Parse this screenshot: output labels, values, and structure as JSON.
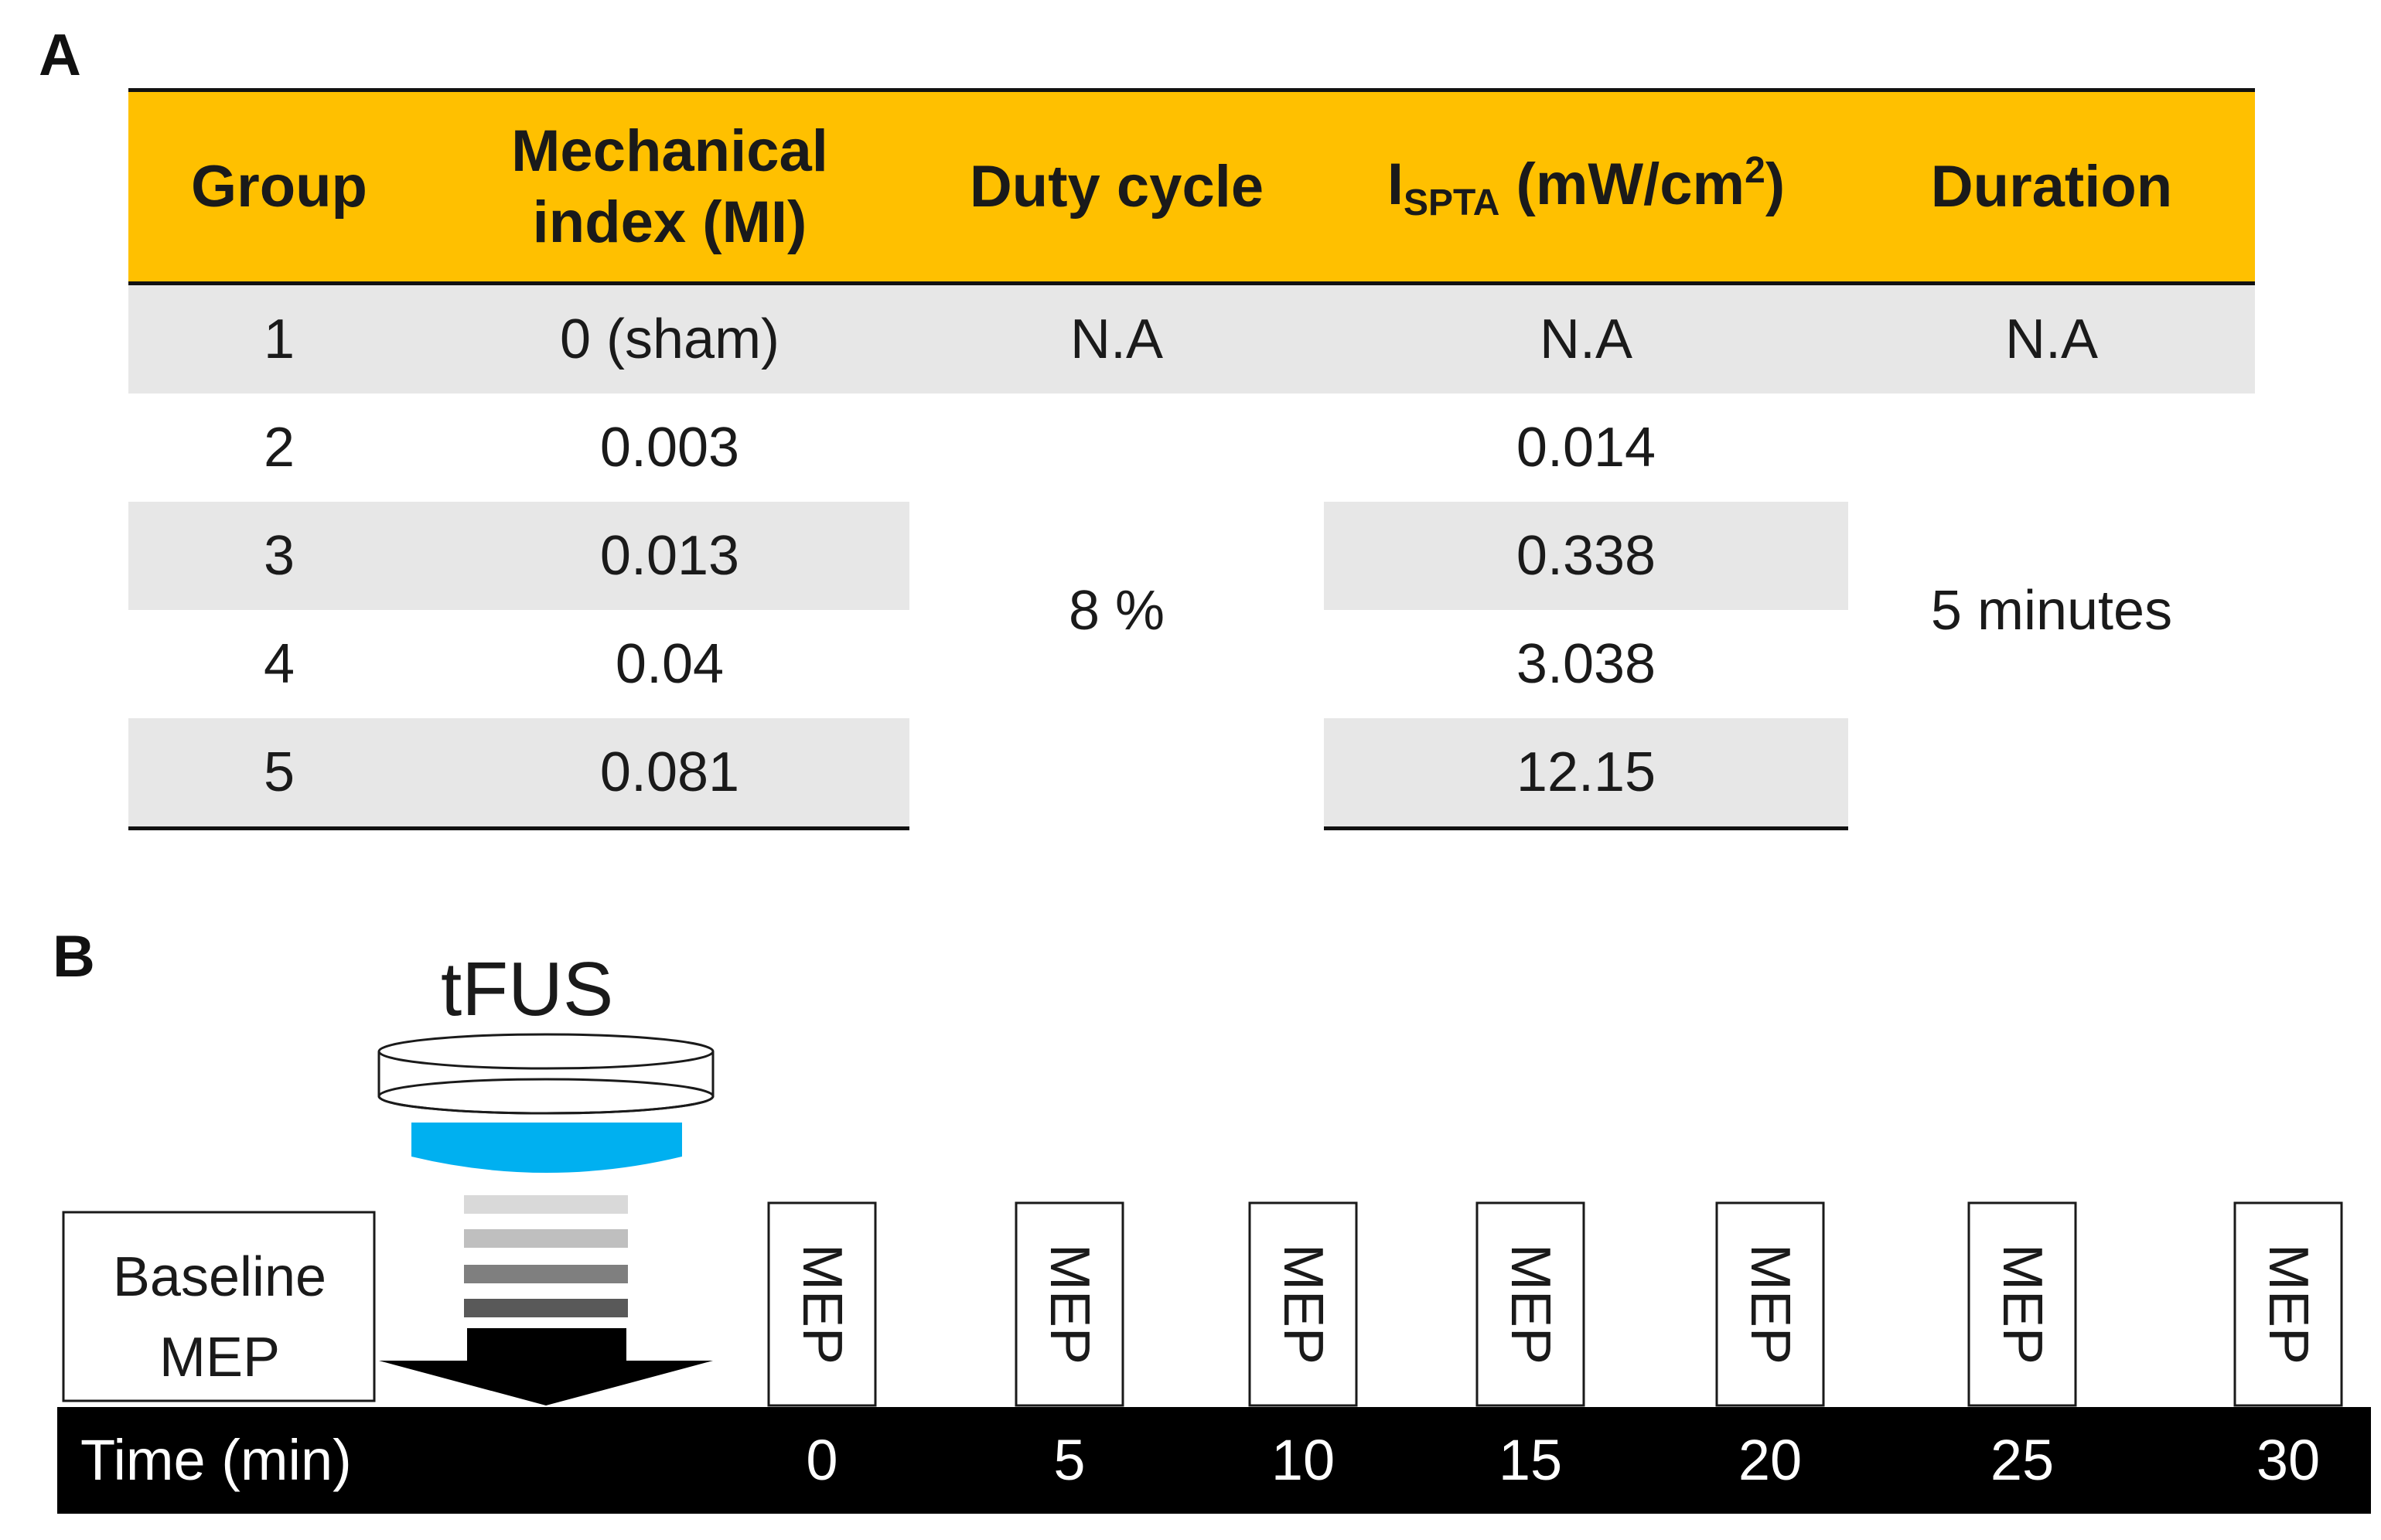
{
  "panel_labels": {
    "a": "A",
    "b": "B"
  },
  "table": {
    "headers": {
      "group": "Group",
      "mi_line1": "Mechanical",
      "mi_line2": "index (MI)",
      "duty": "Duty cycle",
      "ispta_main": "I",
      "ispta_sub": "SPTA",
      "ispta_unit_pre": " (mW/cm",
      "ispta_sup": "2",
      "ispta_unit_post": ")",
      "duration": "Duration"
    },
    "sham_row": {
      "group": "1",
      "mi": "0 (sham)",
      "duty": "N.A",
      "ispta": "N.A",
      "duration": "N.A"
    },
    "rows": [
      {
        "group": "2",
        "mi": "0.003",
        "ispta": "0.014"
      },
      {
        "group": "3",
        "mi": "0.013",
        "ispta": "0.338"
      },
      {
        "group": "4",
        "mi": "0.04",
        "ispta": "3.038"
      },
      {
        "group": "5",
        "mi": "0.081",
        "ispta": "12.15"
      }
    ],
    "shared_duty": "8 %",
    "shared_duration": "5 minutes"
  },
  "diagram": {
    "tfus_label": "tFUS",
    "baseline_line1": "Baseline",
    "baseline_line2": "MEP",
    "mep_label": "MEP",
    "timeline_label": "Time (min)",
    "ticks": [
      "0",
      "5",
      "10",
      "15",
      "20",
      "25",
      "30"
    ],
    "colors": {
      "transducer_face": "#00b0f0",
      "wave_bars": [
        "#d9d9d9",
        "#bfbfbf",
        "#7f7f7f",
        "#595959"
      ],
      "arrow": "#000000",
      "timeline_bar": "#000000"
    }
  }
}
